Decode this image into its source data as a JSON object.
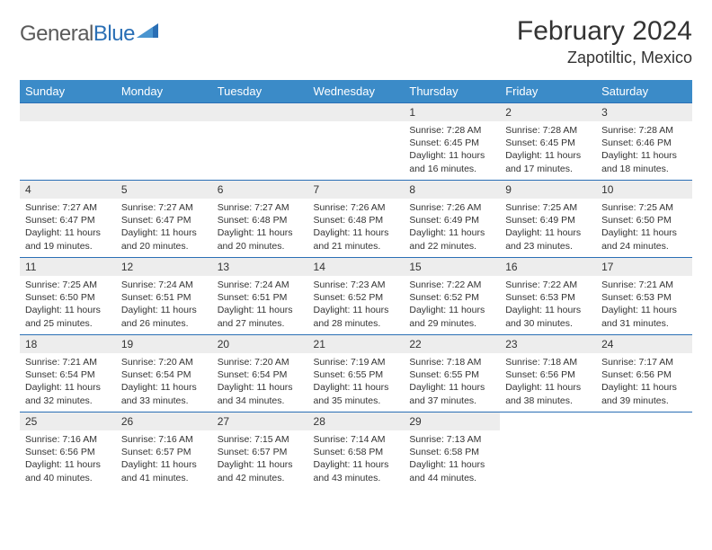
{
  "logo": {
    "text_part1": "General",
    "text_part2": "Blue",
    "color_gray": "#5a5a5a",
    "color_blue": "#2a6fb5"
  },
  "header": {
    "month_title": "February 2024",
    "location": "Zapotiltic, Mexico"
  },
  "colors": {
    "header_bg": "#3b8bc8",
    "header_text": "#ffffff",
    "row_border": "#2a6fb5",
    "daynum_bg": "#ededed",
    "text": "#333333",
    "page_bg": "#ffffff"
  },
  "fonts": {
    "month_title_size": 30,
    "location_size": 18,
    "weekday_size": 13,
    "daynum_size": 12,
    "body_size": 10.5
  },
  "weekdays": [
    "Sunday",
    "Monday",
    "Tuesday",
    "Wednesday",
    "Thursday",
    "Friday",
    "Saturday"
  ],
  "weeks": [
    [
      null,
      null,
      null,
      null,
      {
        "n": "1",
        "sr": "Sunrise: 7:28 AM",
        "ss": "Sunset: 6:45 PM",
        "dl": "Daylight: 11 hours and 16 minutes."
      },
      {
        "n": "2",
        "sr": "Sunrise: 7:28 AM",
        "ss": "Sunset: 6:45 PM",
        "dl": "Daylight: 11 hours and 17 minutes."
      },
      {
        "n": "3",
        "sr": "Sunrise: 7:28 AM",
        "ss": "Sunset: 6:46 PM",
        "dl": "Daylight: 11 hours and 18 minutes."
      }
    ],
    [
      {
        "n": "4",
        "sr": "Sunrise: 7:27 AM",
        "ss": "Sunset: 6:47 PM",
        "dl": "Daylight: 11 hours and 19 minutes."
      },
      {
        "n": "5",
        "sr": "Sunrise: 7:27 AM",
        "ss": "Sunset: 6:47 PM",
        "dl": "Daylight: 11 hours and 20 minutes."
      },
      {
        "n": "6",
        "sr": "Sunrise: 7:27 AM",
        "ss": "Sunset: 6:48 PM",
        "dl": "Daylight: 11 hours and 20 minutes."
      },
      {
        "n": "7",
        "sr": "Sunrise: 7:26 AM",
        "ss": "Sunset: 6:48 PM",
        "dl": "Daylight: 11 hours and 21 minutes."
      },
      {
        "n": "8",
        "sr": "Sunrise: 7:26 AM",
        "ss": "Sunset: 6:49 PM",
        "dl": "Daylight: 11 hours and 22 minutes."
      },
      {
        "n": "9",
        "sr": "Sunrise: 7:25 AM",
        "ss": "Sunset: 6:49 PM",
        "dl": "Daylight: 11 hours and 23 minutes."
      },
      {
        "n": "10",
        "sr": "Sunrise: 7:25 AM",
        "ss": "Sunset: 6:50 PM",
        "dl": "Daylight: 11 hours and 24 minutes."
      }
    ],
    [
      {
        "n": "11",
        "sr": "Sunrise: 7:25 AM",
        "ss": "Sunset: 6:50 PM",
        "dl": "Daylight: 11 hours and 25 minutes."
      },
      {
        "n": "12",
        "sr": "Sunrise: 7:24 AM",
        "ss": "Sunset: 6:51 PM",
        "dl": "Daylight: 11 hours and 26 minutes."
      },
      {
        "n": "13",
        "sr": "Sunrise: 7:24 AM",
        "ss": "Sunset: 6:51 PM",
        "dl": "Daylight: 11 hours and 27 minutes."
      },
      {
        "n": "14",
        "sr": "Sunrise: 7:23 AM",
        "ss": "Sunset: 6:52 PM",
        "dl": "Daylight: 11 hours and 28 minutes."
      },
      {
        "n": "15",
        "sr": "Sunrise: 7:22 AM",
        "ss": "Sunset: 6:52 PM",
        "dl": "Daylight: 11 hours and 29 minutes."
      },
      {
        "n": "16",
        "sr": "Sunrise: 7:22 AM",
        "ss": "Sunset: 6:53 PM",
        "dl": "Daylight: 11 hours and 30 minutes."
      },
      {
        "n": "17",
        "sr": "Sunrise: 7:21 AM",
        "ss": "Sunset: 6:53 PM",
        "dl": "Daylight: 11 hours and 31 minutes."
      }
    ],
    [
      {
        "n": "18",
        "sr": "Sunrise: 7:21 AM",
        "ss": "Sunset: 6:54 PM",
        "dl": "Daylight: 11 hours and 32 minutes."
      },
      {
        "n": "19",
        "sr": "Sunrise: 7:20 AM",
        "ss": "Sunset: 6:54 PM",
        "dl": "Daylight: 11 hours and 33 minutes."
      },
      {
        "n": "20",
        "sr": "Sunrise: 7:20 AM",
        "ss": "Sunset: 6:54 PM",
        "dl": "Daylight: 11 hours and 34 minutes."
      },
      {
        "n": "21",
        "sr": "Sunrise: 7:19 AM",
        "ss": "Sunset: 6:55 PM",
        "dl": "Daylight: 11 hours and 35 minutes."
      },
      {
        "n": "22",
        "sr": "Sunrise: 7:18 AM",
        "ss": "Sunset: 6:55 PM",
        "dl": "Daylight: 11 hours and 37 minutes."
      },
      {
        "n": "23",
        "sr": "Sunrise: 7:18 AM",
        "ss": "Sunset: 6:56 PM",
        "dl": "Daylight: 11 hours and 38 minutes."
      },
      {
        "n": "24",
        "sr": "Sunrise: 7:17 AM",
        "ss": "Sunset: 6:56 PM",
        "dl": "Daylight: 11 hours and 39 minutes."
      }
    ],
    [
      {
        "n": "25",
        "sr": "Sunrise: 7:16 AM",
        "ss": "Sunset: 6:56 PM",
        "dl": "Daylight: 11 hours and 40 minutes."
      },
      {
        "n": "26",
        "sr": "Sunrise: 7:16 AM",
        "ss": "Sunset: 6:57 PM",
        "dl": "Daylight: 11 hours and 41 minutes."
      },
      {
        "n": "27",
        "sr": "Sunrise: 7:15 AM",
        "ss": "Sunset: 6:57 PM",
        "dl": "Daylight: 11 hours and 42 minutes."
      },
      {
        "n": "28",
        "sr": "Sunrise: 7:14 AM",
        "ss": "Sunset: 6:58 PM",
        "dl": "Daylight: 11 hours and 43 minutes."
      },
      {
        "n": "29",
        "sr": "Sunrise: 7:13 AM",
        "ss": "Sunset: 6:58 PM",
        "dl": "Daylight: 11 hours and 44 minutes."
      },
      null,
      null
    ]
  ]
}
